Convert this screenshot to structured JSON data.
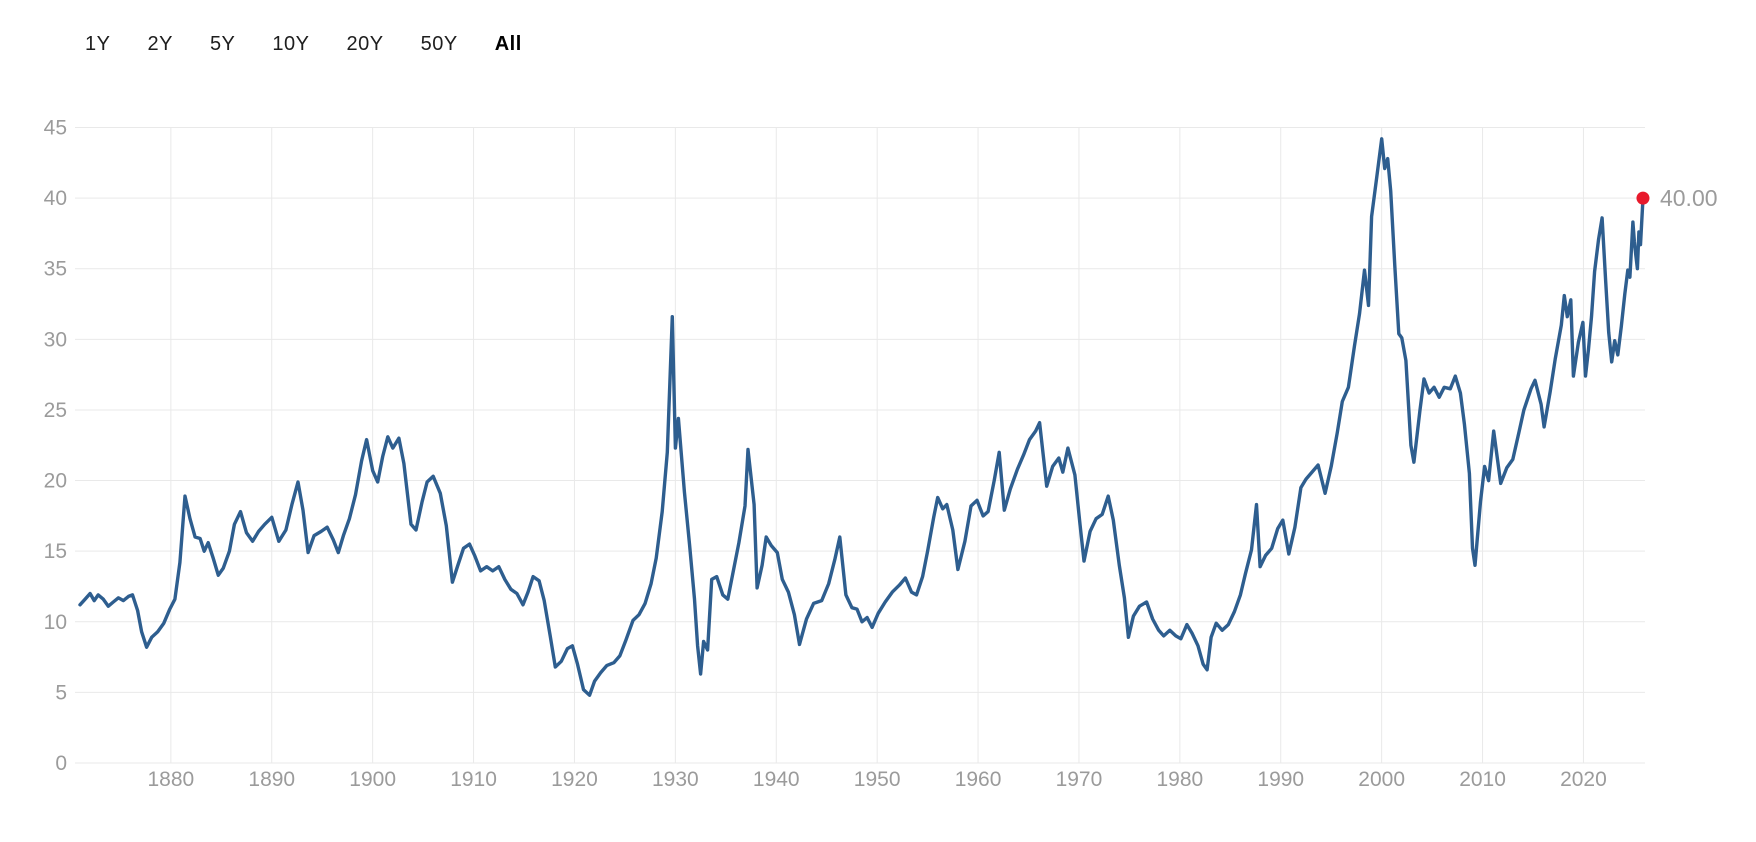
{
  "range_selector": {
    "options": [
      "1Y",
      "2Y",
      "5Y",
      "10Y",
      "20Y",
      "50Y",
      "All"
    ],
    "selected": "All"
  },
  "colors": {
    "line": "#2e5e8f",
    "marker": "#e81a2c",
    "axis_text": "#9b9b9b",
    "gridline": "#e9e9e9",
    "button_text": "#1e1e1e",
    "background": "#ffffff"
  },
  "chart_data": {
    "type": "line",
    "title": "",
    "xlabel": "",
    "ylabel": "",
    "grid": true,
    "legend": false,
    "x_axis": {
      "range": [
        1870.5,
        2026.1
      ],
      "ticks": [
        1880,
        1890,
        1900,
        1910,
        1920,
        1930,
        1940,
        1950,
        1960,
        1970,
        1980,
        1990,
        2000,
        2010,
        2020
      ],
      "tick_labels": [
        "1880",
        "1890",
        "1900",
        "1910",
        "1920",
        "1930",
        "1940",
        "1950",
        "1960",
        "1970",
        "1980",
        "1990",
        "2000",
        "2010",
        "2020"
      ]
    },
    "y_axis": {
      "range": [
        0,
        45
      ],
      "ticks": [
        0,
        5,
        10,
        15,
        20,
        25,
        30,
        35,
        40,
        45
      ],
      "tick_labels": [
        "0",
        "5",
        "10",
        "15",
        "20",
        "25",
        "30",
        "35",
        "40",
        "45"
      ]
    },
    "last_point": {
      "x": 2025.9,
      "y": 40.0,
      "label": "40.00"
    },
    "points": [
      [
        1871.0,
        11.2
      ],
      [
        1871.5,
        11.6
      ],
      [
        1872.0,
        12.0
      ],
      [
        1872.4,
        11.5
      ],
      [
        1872.8,
        11.9
      ],
      [
        1873.3,
        11.6
      ],
      [
        1873.8,
        11.1
      ],
      [
        1874.3,
        11.4
      ],
      [
        1874.8,
        11.7
      ],
      [
        1875.3,
        11.5
      ],
      [
        1875.8,
        11.8
      ],
      [
        1876.2,
        11.9
      ],
      [
        1876.7,
        10.8
      ],
      [
        1877.1,
        9.3
      ],
      [
        1877.6,
        8.2
      ],
      [
        1878.1,
        8.9
      ],
      [
        1878.7,
        9.3
      ],
      [
        1879.3,
        9.9
      ],
      [
        1879.9,
        10.9
      ],
      [
        1880.4,
        11.6
      ],
      [
        1880.9,
        14.2
      ],
      [
        1881.4,
        18.9
      ],
      [
        1881.9,
        17.3
      ],
      [
        1882.4,
        16.0
      ],
      [
        1882.9,
        15.9
      ],
      [
        1883.3,
        15.0
      ],
      [
        1883.7,
        15.6
      ],
      [
        1884.2,
        14.5
      ],
      [
        1884.7,
        13.3
      ],
      [
        1885.2,
        13.8
      ],
      [
        1885.8,
        15.0
      ],
      [
        1886.3,
        16.9
      ],
      [
        1886.9,
        17.8
      ],
      [
        1887.5,
        16.3
      ],
      [
        1888.1,
        15.7
      ],
      [
        1888.7,
        16.4
      ],
      [
        1889.3,
        16.9
      ],
      [
        1890.0,
        17.4
      ],
      [
        1890.7,
        15.7
      ],
      [
        1891.4,
        16.5
      ],
      [
        1892.0,
        18.3
      ],
      [
        1892.6,
        19.9
      ],
      [
        1893.1,
        17.9
      ],
      [
        1893.6,
        14.9
      ],
      [
        1894.2,
        16.1
      ],
      [
        1894.9,
        16.4
      ],
      [
        1895.5,
        16.7
      ],
      [
        1896.1,
        15.8
      ],
      [
        1896.6,
        14.9
      ],
      [
        1897.1,
        16.1
      ],
      [
        1897.7,
        17.3
      ],
      [
        1898.3,
        19.0
      ],
      [
        1898.9,
        21.4
      ],
      [
        1899.4,
        22.9
      ],
      [
        1900.0,
        20.7
      ],
      [
        1900.5,
        19.9
      ],
      [
        1901.0,
        21.7
      ],
      [
        1901.5,
        23.1
      ],
      [
        1902.0,
        22.3
      ],
      [
        1902.6,
        23.0
      ],
      [
        1903.1,
        21.2
      ],
      [
        1903.8,
        16.9
      ],
      [
        1904.3,
        16.5
      ],
      [
        1904.9,
        18.5
      ],
      [
        1905.4,
        19.9
      ],
      [
        1906.0,
        20.3
      ],
      [
        1906.7,
        19.1
      ],
      [
        1907.3,
        16.8
      ],
      [
        1907.9,
        12.8
      ],
      [
        1908.4,
        13.9
      ],
      [
        1909.0,
        15.2
      ],
      [
        1909.6,
        15.5
      ],
      [
        1910.1,
        14.7
      ],
      [
        1910.7,
        13.6
      ],
      [
        1911.3,
        13.9
      ],
      [
        1911.9,
        13.6
      ],
      [
        1912.5,
        13.9
      ],
      [
        1913.1,
        13.0
      ],
      [
        1913.7,
        12.3
      ],
      [
        1914.3,
        12.0
      ],
      [
        1914.9,
        11.2
      ],
      [
        1915.4,
        12.1
      ],
      [
        1915.9,
        13.2
      ],
      [
        1916.5,
        12.9
      ],
      [
        1917.0,
        11.5
      ],
      [
        1917.6,
        9.0
      ],
      [
        1918.1,
        6.8
      ],
      [
        1918.7,
        7.2
      ],
      [
        1919.3,
        8.1
      ],
      [
        1919.8,
        8.3
      ],
      [
        1920.3,
        7.0
      ],
      [
        1920.9,
        5.2
      ],
      [
        1921.5,
        4.8
      ],
      [
        1922.0,
        5.8
      ],
      [
        1922.6,
        6.4
      ],
      [
        1923.2,
        6.9
      ],
      [
        1923.9,
        7.1
      ],
      [
        1924.5,
        7.6
      ],
      [
        1925.1,
        8.7
      ],
      [
        1925.8,
        10.1
      ],
      [
        1926.4,
        10.5
      ],
      [
        1927.0,
        11.3
      ],
      [
        1927.6,
        12.7
      ],
      [
        1928.1,
        14.5
      ],
      [
        1928.7,
        17.8
      ],
      [
        1929.2,
        22.0
      ],
      [
        1929.7,
        31.6
      ],
      [
        1930.0,
        22.3
      ],
      [
        1930.3,
        24.4
      ],
      [
        1930.9,
        19.2
      ],
      [
        1931.4,
        15.5
      ],
      [
        1931.9,
        11.6
      ],
      [
        1932.2,
        8.3
      ],
      [
        1932.5,
        6.3
      ],
      [
        1932.8,
        8.6
      ],
      [
        1933.2,
        8.0
      ],
      [
        1933.6,
        13.0
      ],
      [
        1934.1,
        13.2
      ],
      [
        1934.7,
        11.9
      ],
      [
        1935.2,
        11.6
      ],
      [
        1935.8,
        13.8
      ],
      [
        1936.3,
        15.6
      ],
      [
        1936.9,
        18.2
      ],
      [
        1937.2,
        22.2
      ],
      [
        1937.8,
        18.3
      ],
      [
        1938.1,
        12.4
      ],
      [
        1938.6,
        14.0
      ],
      [
        1939.0,
        16.0
      ],
      [
        1939.5,
        15.4
      ],
      [
        1940.1,
        14.9
      ],
      [
        1940.6,
        13.0
      ],
      [
        1941.2,
        12.1
      ],
      [
        1941.8,
        10.5
      ],
      [
        1942.3,
        8.4
      ],
      [
        1943.0,
        10.2
      ],
      [
        1943.7,
        11.3
      ],
      [
        1944.5,
        11.5
      ],
      [
        1945.2,
        12.7
      ],
      [
        1945.8,
        14.4
      ],
      [
        1946.3,
        16.0
      ],
      [
        1946.9,
        11.9
      ],
      [
        1947.5,
        11.0
      ],
      [
        1948.0,
        10.9
      ],
      [
        1948.5,
        10.0
      ],
      [
        1949.0,
        10.3
      ],
      [
        1949.5,
        9.6
      ],
      [
        1950.1,
        10.6
      ],
      [
        1950.8,
        11.4
      ],
      [
        1951.5,
        12.1
      ],
      [
        1952.2,
        12.6
      ],
      [
        1952.8,
        13.1
      ],
      [
        1953.4,
        12.1
      ],
      [
        1953.9,
        11.9
      ],
      [
        1954.5,
        13.2
      ],
      [
        1955.0,
        15.0
      ],
      [
        1955.6,
        17.4
      ],
      [
        1956.0,
        18.8
      ],
      [
        1956.5,
        18.0
      ],
      [
        1956.9,
        18.3
      ],
      [
        1957.5,
        16.5
      ],
      [
        1958.0,
        13.7
      ],
      [
        1958.7,
        15.7
      ],
      [
        1959.3,
        18.2
      ],
      [
        1959.9,
        18.6
      ],
      [
        1960.5,
        17.5
      ],
      [
        1961.0,
        17.8
      ],
      [
        1961.6,
        20.0
      ],
      [
        1962.1,
        22.0
      ],
      [
        1962.6,
        17.9
      ],
      [
        1963.2,
        19.4
      ],
      [
        1963.9,
        20.8
      ],
      [
        1964.5,
        21.8
      ],
      [
        1965.1,
        22.9
      ],
      [
        1965.7,
        23.5
      ],
      [
        1966.1,
        24.1
      ],
      [
        1966.8,
        19.6
      ],
      [
        1967.4,
        21.0
      ],
      [
        1968.0,
        21.6
      ],
      [
        1968.4,
        20.6
      ],
      [
        1968.9,
        22.3
      ],
      [
        1969.6,
        20.4
      ],
      [
        1970.1,
        16.9
      ],
      [
        1970.5,
        14.3
      ],
      [
        1971.1,
        16.4
      ],
      [
        1971.7,
        17.3
      ],
      [
        1972.3,
        17.6
      ],
      [
        1972.9,
        18.9
      ],
      [
        1973.4,
        17.2
      ],
      [
        1974.0,
        14.0
      ],
      [
        1974.5,
        11.7
      ],
      [
        1974.9,
        8.9
      ],
      [
        1975.4,
        10.4
      ],
      [
        1976.0,
        11.1
      ],
      [
        1976.7,
        11.4
      ],
      [
        1977.3,
        10.2
      ],
      [
        1977.9,
        9.4
      ],
      [
        1978.4,
        9.0
      ],
      [
        1979.0,
        9.4
      ],
      [
        1979.6,
        9.0
      ],
      [
        1980.1,
        8.8
      ],
      [
        1980.7,
        9.8
      ],
      [
        1981.2,
        9.2
      ],
      [
        1981.8,
        8.3
      ],
      [
        1982.3,
        7.0
      ],
      [
        1982.7,
        6.6
      ],
      [
        1983.1,
        8.9
      ],
      [
        1983.6,
        9.9
      ],
      [
        1984.2,
        9.4
      ],
      [
        1984.8,
        9.8
      ],
      [
        1985.4,
        10.7
      ],
      [
        1986.0,
        11.9
      ],
      [
        1986.5,
        13.4
      ],
      [
        1987.1,
        15.1
      ],
      [
        1987.6,
        18.3
      ],
      [
        1987.95,
        13.9
      ],
      [
        1988.5,
        14.7
      ],
      [
        1989.1,
        15.2
      ],
      [
        1989.7,
        16.6
      ],
      [
        1990.2,
        17.2
      ],
      [
        1990.8,
        14.8
      ],
      [
        1991.4,
        16.7
      ],
      [
        1992.0,
        19.5
      ],
      [
        1992.5,
        20.1
      ],
      [
        1993.1,
        20.6
      ],
      [
        1993.7,
        21.1
      ],
      [
        1994.4,
        19.1
      ],
      [
        1995.0,
        21.0
      ],
      [
        1995.6,
        23.4
      ],
      [
        1996.1,
        25.6
      ],
      [
        1996.7,
        26.6
      ],
      [
        1997.3,
        29.5
      ],
      [
        1997.8,
        31.8
      ],
      [
        1998.3,
        34.9
      ],
      [
        1998.7,
        32.4
      ],
      [
        1999.0,
        38.7
      ],
      [
        1999.5,
        41.4
      ],
      [
        2000.0,
        44.2
      ],
      [
        2000.3,
        42.1
      ],
      [
        2000.6,
        42.8
      ],
      [
        2000.9,
        40.5
      ],
      [
        2001.3,
        35.2
      ],
      [
        2001.7,
        30.4
      ],
      [
        2002.0,
        30.1
      ],
      [
        2002.4,
        28.5
      ],
      [
        2002.9,
        22.5
      ],
      [
        2003.2,
        21.3
      ],
      [
        2003.8,
        25.0
      ],
      [
        2004.2,
        27.2
      ],
      [
        2004.7,
        26.2
      ],
      [
        2005.2,
        26.6
      ],
      [
        2005.7,
        25.9
      ],
      [
        2006.2,
        26.6
      ],
      [
        2006.8,
        26.5
      ],
      [
        2007.3,
        27.4
      ],
      [
        2007.8,
        26.2
      ],
      [
        2008.2,
        24.0
      ],
      [
        2008.7,
        20.5
      ],
      [
        2009.0,
        15.2
      ],
      [
        2009.25,
        14.0
      ],
      [
        2009.8,
        18.5
      ],
      [
        2010.2,
        21.0
      ],
      [
        2010.6,
        20.0
      ],
      [
        2011.1,
        23.5
      ],
      [
        2011.8,
        19.8
      ],
      [
        2012.4,
        20.9
      ],
      [
        2013.0,
        21.5
      ],
      [
        2013.6,
        23.4
      ],
      [
        2014.1,
        25.0
      ],
      [
        2014.8,
        26.5
      ],
      [
        2015.2,
        27.1
      ],
      [
        2015.8,
        25.4
      ],
      [
        2016.1,
        23.8
      ],
      [
        2016.7,
        26.3
      ],
      [
        2017.2,
        28.6
      ],
      [
        2017.8,
        31.0
      ],
      [
        2018.1,
        33.1
      ],
      [
        2018.4,
        31.6
      ],
      [
        2018.75,
        32.8
      ],
      [
        2019.0,
        27.4
      ],
      [
        2019.5,
        29.8
      ],
      [
        2019.95,
        31.2
      ],
      [
        2020.2,
        27.4
      ],
      [
        2020.5,
        29.3
      ],
      [
        2020.8,
        31.6
      ],
      [
        2021.1,
        34.8
      ],
      [
        2021.5,
        37.1
      ],
      [
        2021.85,
        38.6
      ],
      [
        2022.2,
        34.2
      ],
      [
        2022.5,
        30.5
      ],
      [
        2022.8,
        28.4
      ],
      [
        2023.1,
        29.9
      ],
      [
        2023.4,
        28.9
      ],
      [
        2023.75,
        30.9
      ],
      [
        2024.1,
        33.2
      ],
      [
        2024.4,
        34.9
      ],
      [
        2024.6,
        34.4
      ],
      [
        2024.9,
        38.3
      ],
      [
        2025.05,
        36.9
      ],
      [
        2025.2,
        35.9
      ],
      [
        2025.35,
        35.0
      ],
      [
        2025.5,
        37.6
      ],
      [
        2025.65,
        36.7
      ],
      [
        2025.9,
        40.0
      ]
    ]
  }
}
